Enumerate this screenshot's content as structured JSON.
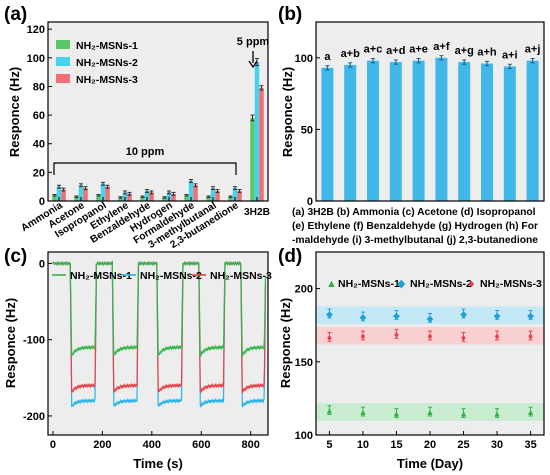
{
  "colors": {
    "s1": "#5ac866",
    "s2": "#45d3ee",
    "s3": "#ef6f75",
    "bar_b": "#3fb7e8",
    "green_pt": "#32b34a",
    "blue_pt": "#1fa0d8",
    "red_pt": "#e8404a"
  },
  "panels": {
    "a": {
      "label": "(a)",
      "ylabel": "Responce (Hz)",
      "yticks": [
        "0",
        "20",
        "40",
        "60",
        "80",
        "100",
        "120"
      ],
      "legend": [
        {
          "name": "NH₂-MSNs-1"
        },
        {
          "name": "NH₂-MSNs-2"
        },
        {
          "name": "NH₂-MSNs-3"
        }
      ],
      "annotation_10ppm": "10 ppm",
      "annotation_5ppm": "5 ppm"
    },
    "b": {
      "label": "(b)",
      "ylabel": "Responce (Hz)",
      "yticks": [
        "0",
        "50",
        "100"
      ],
      "caption": [
        "(a) 3H2B (b) Ammonia  (c) Acetone (d) Isopropanol",
        "(e) Ethylene (f) Benzaldehyde (g) Hydrogen (h) For",
        "-maldehyde (i) 3-methylbutanal (j) 2,3-butanedione"
      ]
    },
    "c": {
      "label": "(c)",
      "xlabel": "Time (s)",
      "ylabel": "Responce (Hz)",
      "xticks": [
        "0",
        "200",
        "400",
        "600",
        "800"
      ],
      "yticks": [
        "0",
        "-100",
        "-200"
      ],
      "legend": [
        "NH₂-MSNs-1",
        "NH₂-MSNs-2",
        "NH₂-MSNs-3"
      ]
    },
    "d": {
      "label": "(d)",
      "xlabel": "Time (Day)",
      "ylabel": "Responce (Hz)",
      "xticks": [
        "5",
        "10",
        "15",
        "20",
        "25",
        "30",
        "35"
      ],
      "yticks": [
        "100",
        "150",
        "200"
      ],
      "legend": [
        "NH₂-MSNs-1",
        "NH₂-MSNs-2",
        "NH₂-MSNs-3"
      ]
    }
  },
  "chart_data": [
    {
      "id": "a",
      "type": "bar",
      "categories": [
        "Ammonia",
        "Acetone",
        "Isopropanol",
        "Ethylene",
        "Benzaldehyde",
        "Hydrogen",
        "Formaldehyde",
        "3-methylbutanal",
        "2,3-butanedione",
        "3H2B"
      ],
      "series": [
        {
          "name": "NH₂-MSNs-1",
          "values": [
            4,
            3,
            4,
            2.5,
            3,
            2.5,
            4,
            3,
            3,
            58
          ],
          "errors": [
            0.5,
            0.5,
            0.5,
            0.5,
            0.5,
            0.5,
            0.5,
            0.5,
            0.5,
            2
          ]
        },
        {
          "name": "NH₂-MSNs-2",
          "values": [
            10,
            11,
            12,
            6,
            7,
            6,
            14,
            9,
            9,
            97
          ],
          "errors": [
            1,
            1,
            1,
            1,
            1,
            1,
            1,
            1,
            1,
            2.5
          ]
        },
        {
          "name": "NH₂-MSNs-3",
          "values": [
            8,
            9,
            10,
            5,
            6,
            5,
            11,
            7,
            7,
            79
          ],
          "errors": [
            1,
            1,
            1,
            1,
            1,
            1,
            1,
            1,
            1,
            1.5
          ]
        }
      ],
      "ylabel": "Responce (Hz)",
      "ylim": [
        0,
        125
      ]
    },
    {
      "id": "b",
      "type": "bar",
      "categories": [
        "a",
        "a+b",
        "a+c",
        "a+d",
        "a+e",
        "a+f",
        "a+g",
        "a+h",
        "a+i",
        "a+j"
      ],
      "values": [
        93,
        95,
        98,
        97,
        98,
        100,
        97,
        96,
        94,
        98
      ],
      "errors": [
        1.5,
        1.5,
        1.5,
        1.5,
        1.5,
        1.5,
        1.5,
        1.5,
        1.5,
        1.5
      ],
      "ylabel": "Responce (Hz)",
      "ylim": [
        0,
        125
      ]
    },
    {
      "id": "c",
      "type": "line",
      "xlabel": "Time (s)",
      "ylabel": "Responce (Hz)",
      "xlim": [
        -20,
        870
      ],
      "ylim": [
        -225,
        15
      ],
      "cycles": [
        {
          "on": 70,
          "off": 170
        },
        {
          "on": 240,
          "off": 340
        },
        {
          "on": 420,
          "off": 520
        },
        {
          "on": 590,
          "off": 690
        },
        {
          "on": 760,
          "off": 855
        }
      ],
      "series": [
        {
          "name": "NH₂-MSNs-1",
          "min": -125,
          "plateau": -110
        },
        {
          "name": "NH₂-MSNs-2",
          "min": -190,
          "plateau": -180
        },
        {
          "name": "NH₂-MSNs-3",
          "min": -172,
          "plateau": -160
        }
      ]
    },
    {
      "id": "d",
      "type": "scatter",
      "x": [
        5,
        10,
        15,
        20,
        25,
        30,
        35
      ],
      "xlabel": "Time (Day)",
      "ylabel": "Responce (Hz)",
      "xlim": [
        3,
        37
      ],
      "ylim": [
        100,
        225
      ],
      "series": [
        {
          "name": "NH₂-MSNs-1",
          "values": [
            117,
            116,
            115,
            116,
            115,
            115,
            116
          ],
          "error": 3
        },
        {
          "name": "NH₂-MSNs-2",
          "values": [
            183,
            181,
            182,
            180,
            183,
            182,
            182
          ],
          "error": 3
        },
        {
          "name": "NH₂-MSNs-3",
          "values": [
            167,
            168,
            169,
            168,
            167,
            168,
            168
          ],
          "error": 3
        }
      ]
    }
  ]
}
